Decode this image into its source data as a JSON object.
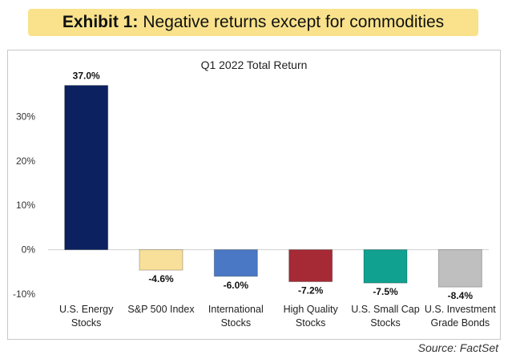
{
  "banner": {
    "bold": "Exhibit 1:",
    "rest": "Negative returns except for commodities"
  },
  "source": "Source: FactSet",
  "chart_data": {
    "type": "bar",
    "title": "Q1 2022 Total Return",
    "categories": [
      [
        "U.S. Energy",
        "Stocks"
      ],
      [
        "S&P 500 Index"
      ],
      [
        "International",
        "Stocks"
      ],
      [
        "High Quality",
        "Stocks"
      ],
      [
        "U.S. Small Cap",
        "Stocks"
      ],
      [
        "U.S. Investment",
        "Grade Bonds"
      ]
    ],
    "values": [
      37.0,
      -4.6,
      -6.0,
      -7.2,
      -7.5,
      -8.4
    ],
    "data_labels": [
      "37.0%",
      "-4.6%",
      "-6.0%",
      "-7.2%",
      "-7.5%",
      "-8.4%"
    ],
    "colors": [
      "#0b2160",
      "#f8e09a",
      "#4a78c4",
      "#a52a35",
      "#11a190",
      "#bfbfbf"
    ],
    "ylim": [
      -10,
      40
    ],
    "yticks": [
      -10,
      0,
      10,
      20,
      30
    ],
    "ytick_labels": [
      "-10%",
      "0%",
      "10%",
      "20%",
      "30%"
    ],
    "xlabel": "",
    "ylabel": "",
    "grid": false,
    "legend": "none"
  }
}
